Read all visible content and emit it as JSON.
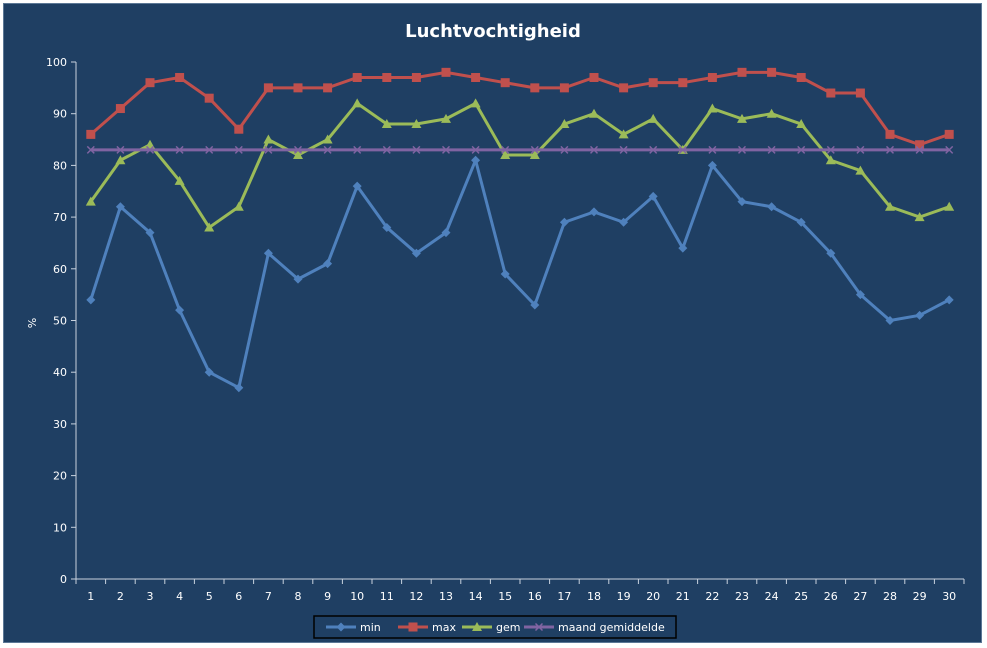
{
  "chart_data": {
    "type": "line",
    "title": "Luchtvochtigheid",
    "xlabel": "",
    "ylabel": "%",
    "ylim": [
      0,
      100
    ],
    "y_ticks": [
      0,
      10,
      20,
      30,
      40,
      50,
      60,
      70,
      80,
      90,
      100
    ],
    "categories": [
      "1",
      "2",
      "3",
      "4",
      "5",
      "6",
      "7",
      "8",
      "9",
      "10",
      "11",
      "12",
      "13",
      "14",
      "15",
      "16",
      "17",
      "18",
      "19",
      "20",
      "21",
      "22",
      "23",
      "24",
      "25",
      "26",
      "27",
      "28",
      "29",
      "30"
    ],
    "grid": false,
    "legend_position": "bottom",
    "series": [
      {
        "name": "min",
        "color": "#4f81bd",
        "marker": "diamond",
        "values": [
          54,
          72,
          67,
          52,
          40,
          37,
          63,
          58,
          61,
          76,
          68,
          63,
          67,
          81,
          59,
          53,
          69,
          71,
          69,
          74,
          64,
          80,
          73,
          72,
          69,
          63,
          55,
          50,
          51,
          54
        ]
      },
      {
        "name": "max",
        "color": "#c0504d",
        "marker": "square",
        "values": [
          86,
          91,
          96,
          97,
          93,
          87,
          95,
          95,
          95,
          97,
          97,
          97,
          98,
          97,
          96,
          95,
          95,
          97,
          95,
          96,
          96,
          97,
          98,
          98,
          97,
          94,
          94,
          86,
          84,
          86
        ]
      },
      {
        "name": "gem",
        "color": "#9bbb59",
        "marker": "triangle",
        "values": [
          73,
          81,
          84,
          77,
          68,
          72,
          85,
          82,
          85,
          92,
          88,
          88,
          89,
          92,
          82,
          82,
          88,
          90,
          86,
          89,
          83,
          91,
          89,
          90,
          88,
          81,
          79,
          72,
          70,
          72
        ]
      },
      {
        "name": "maand gemiddelde",
        "color": "#8064a2",
        "marker": "x",
        "values": [
          83,
          83,
          83,
          83,
          83,
          83,
          83,
          83,
          83,
          83,
          83,
          83,
          83,
          83,
          83,
          83,
          83,
          83,
          83,
          83,
          83,
          83,
          83,
          83,
          83,
          83,
          83,
          83,
          83,
          83
        ]
      }
    ]
  }
}
